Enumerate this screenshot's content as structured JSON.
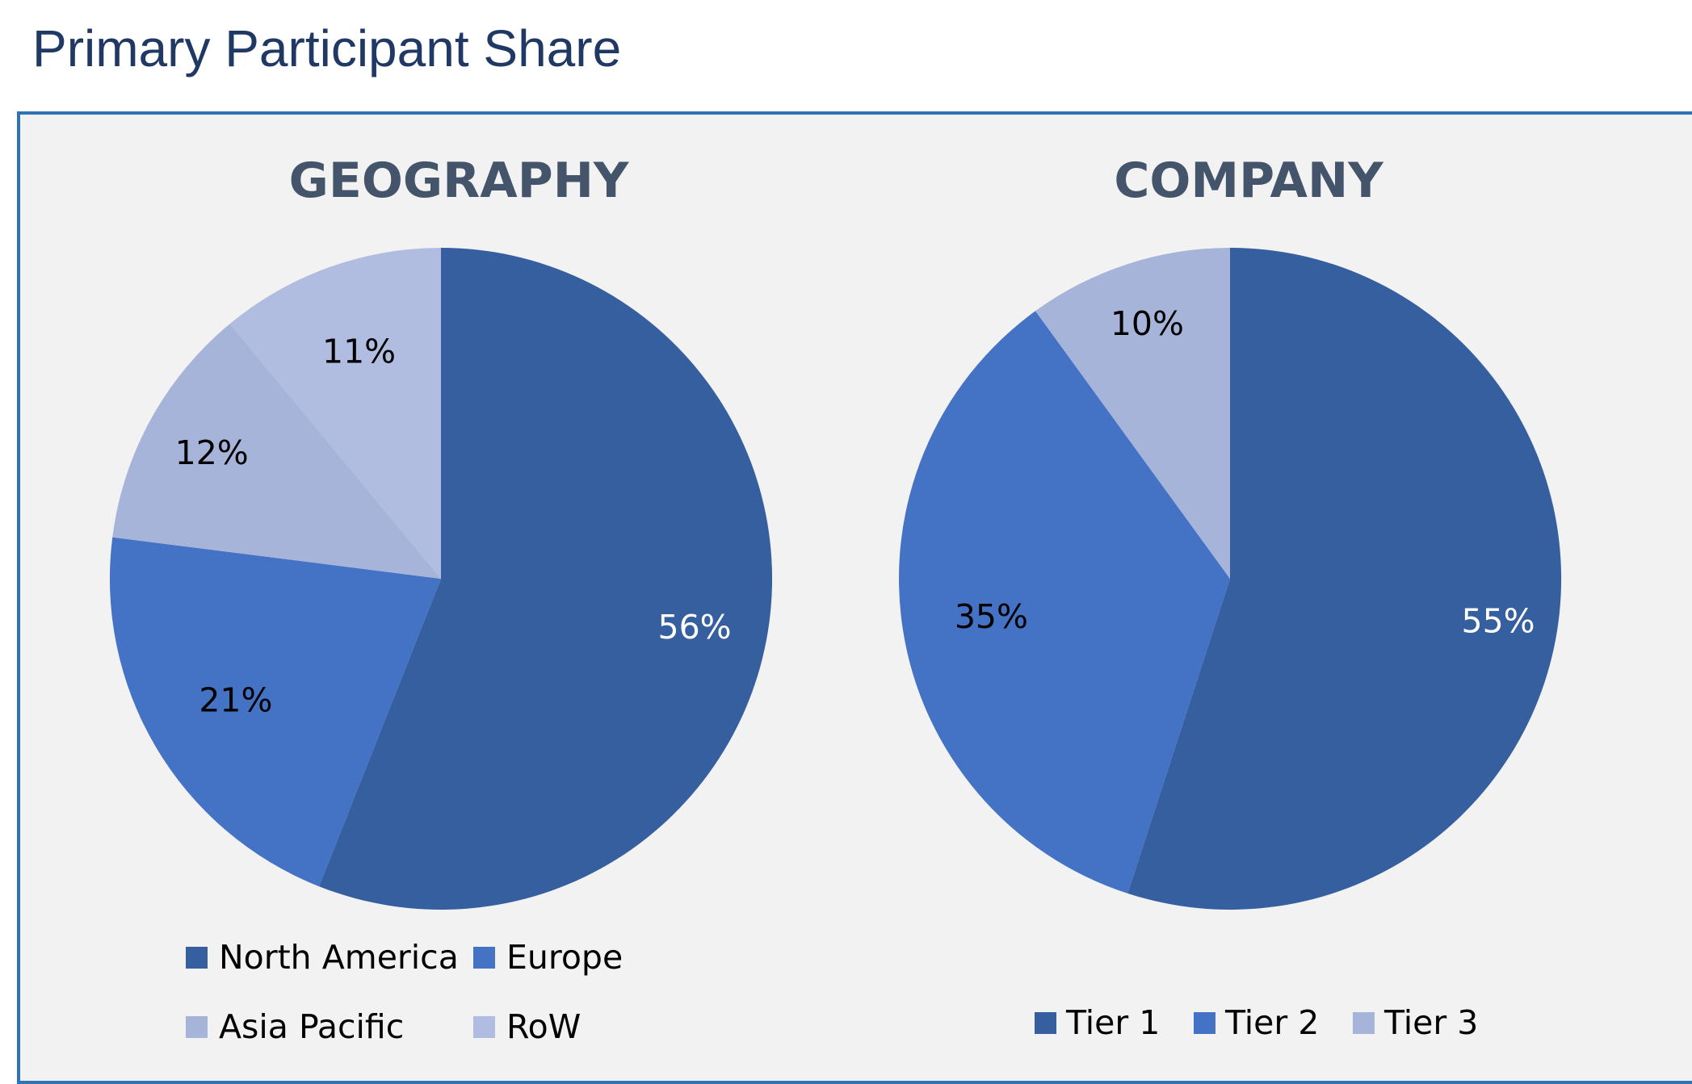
{
  "page": {
    "title": "Primary Participant Share"
  },
  "colors": {
    "panel_bg": "#f2f2f2",
    "panel_border": "#2e74b5",
    "title_text": "#1f3864",
    "chart_title_text": "#44546a"
  },
  "chart_data": [
    {
      "type": "pie",
      "title": "GEOGRAPHY",
      "slices": [
        {
          "label": "North America",
          "value": 56,
          "value_label": "56%",
          "color": "#365f9f",
          "label_color": "#ffffff"
        },
        {
          "label": "Europe",
          "value": 21,
          "value_label": "21%",
          "color": "#4472c4",
          "label_color": "#000000"
        },
        {
          "label": "Asia Pacific",
          "value": 12,
          "value_label": "12%",
          "color": "#a7b4da",
          "label_color": "#000000"
        },
        {
          "label": "RoW",
          "value": 11,
          "value_label": "11%",
          "color": "#b0bce0",
          "label_color": "#000000"
        }
      ],
      "legend": {
        "placement": "bottom",
        "entries": [
          "North America",
          "Europe",
          "Asia Pacific",
          "RoW"
        ]
      }
    },
    {
      "type": "pie",
      "title": "COMPANY",
      "slices": [
        {
          "label": "Tier 1",
          "value": 55,
          "value_label": "55%",
          "color": "#365f9f",
          "label_color": "#ffffff"
        },
        {
          "label": "Tier 2",
          "value": 35,
          "value_label": "35%",
          "color": "#4472c4",
          "label_color": "#000000"
        },
        {
          "label": "Tier 3",
          "value": 10,
          "value_label": "10%",
          "color": "#a7b4da",
          "label_color": "#000000"
        }
      ],
      "legend": {
        "placement": "bottom",
        "entries": [
          "Tier 1",
          "Tier 2",
          "Tier 3"
        ]
      }
    }
  ]
}
